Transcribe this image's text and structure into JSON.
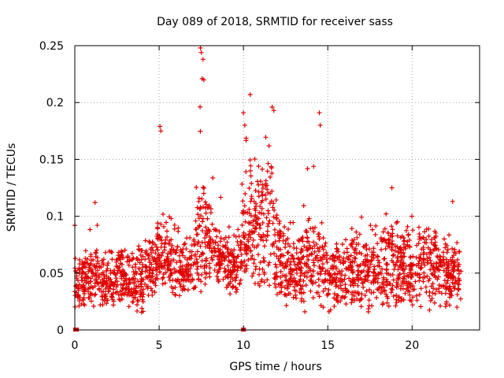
{
  "chart_data": {
    "type": "scatter",
    "title": "Day 089 of 2018, SRMTID for receiver sass",
    "xlabel": "GPS time / hours",
    "ylabel": "SRMTID / TECUs",
    "xlim": [
      0,
      24
    ],
    "ylim": [
      0,
      0.25
    ],
    "xticks": [
      0,
      5,
      10,
      15,
      20
    ],
    "xtick_labels": [
      "0",
      "5",
      "10",
      "15",
      "20"
    ],
    "yticks": [
      0,
      0.05,
      0.1,
      0.15,
      0.2,
      0.25
    ],
    "ytick_labels": [
      "0",
      "0.05",
      "0.1",
      "0.15",
      "0.2",
      "0.25"
    ],
    "grid": true,
    "marker": "+",
    "color": "#e00000",
    "series": [
      {
        "name": "SRMTID",
        "envelope": {
          "x": [
            0,
            1,
            2,
            3,
            4,
            4.8,
            5.0,
            5.5,
            6,
            6.5,
            7,
            7.5,
            8,
            8.5,
            9,
            9.5,
            10,
            10.5,
            11,
            11.5,
            12,
            12.5,
            13,
            13.5,
            14,
            14.5,
            15,
            16,
            17,
            18,
            18.7,
            19.5,
            20,
            21,
            22,
            22.8
          ],
          "hi": [
            0.07,
            0.11,
            0.07,
            0.1,
            0.08,
            0.1,
            0.18,
            0.12,
            0.11,
            0.1,
            0.11,
            0.25,
            0.18,
            0.15,
            0.1,
            0.09,
            0.19,
            0.21,
            0.18,
            0.2,
            0.12,
            0.1,
            0.1,
            0.12,
            0.19,
            0.11,
            0.08,
            0.1,
            0.1,
            0.09,
            0.13,
            0.1,
            0.1,
            0.11,
            0.11,
            0.08
          ],
          "lo": [
            0.02,
            0.02,
            0.02,
            0.02,
            0.015,
            0.03,
            0.04,
            0.04,
            0.03,
            0.03,
            0.03,
            0.03,
            0.05,
            0.04,
            0.03,
            0.03,
            0.04,
            0.04,
            0.04,
            0.04,
            0.03,
            0.02,
            0.02,
            0.02,
            0.02,
            0.02,
            0.02,
            0.02,
            0.02,
            0.02,
            0.02,
            0.02,
            0.02,
            0.02,
            0.02,
            0.02
          ],
          "center": [
            0.045,
            0.045,
            0.045,
            0.045,
            0.045,
            0.06,
            0.07,
            0.065,
            0.055,
            0.055,
            0.06,
            0.09,
            0.08,
            0.065,
            0.06,
            0.055,
            0.09,
            0.1,
            0.09,
            0.1,
            0.075,
            0.06,
            0.055,
            0.055,
            0.065,
            0.06,
            0.05,
            0.055,
            0.055,
            0.055,
            0.06,
            0.055,
            0.06,
            0.06,
            0.055,
            0.05
          ]
        },
        "x_range": [
          0,
          22.9
        ],
        "point_count": 2200,
        "zero_points_x": [
          0.0,
          0.1,
          9.95,
          10.0
        ],
        "outliers": [
          {
            "x": 0.0,
            "y": 0.092
          },
          {
            "x": 1.2,
            "y": 0.112
          },
          {
            "x": 7.45,
            "y": 0.248
          },
          {
            "x": 7.5,
            "y": 0.244
          },
          {
            "x": 7.6,
            "y": 0.238
          },
          {
            "x": 7.55,
            "y": 0.221
          },
          {
            "x": 7.65,
            "y": 0.22
          },
          {
            "x": 10.4,
            "y": 0.207
          },
          {
            "x": 11.7,
            "y": 0.196
          },
          {
            "x": 11.8,
            "y": 0.193
          },
          {
            "x": 10.0,
            "y": 0.191
          },
          {
            "x": 14.5,
            "y": 0.191
          },
          {
            "x": 14.55,
            "y": 0.18
          },
          {
            "x": 5.05,
            "y": 0.179
          },
          {
            "x": 5.1,
            "y": 0.175
          },
          {
            "x": 18.8,
            "y": 0.125
          },
          {
            "x": 22.4,
            "y": 0.113
          }
        ]
      }
    ]
  }
}
